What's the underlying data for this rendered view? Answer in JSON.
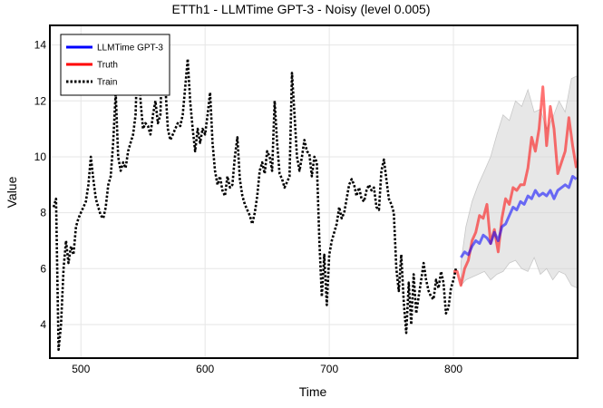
{
  "chart_data": {
    "type": "line",
    "title": "ETTh1 - LLMTime GPT-3 - Noisy (level 0.005)",
    "xlabel": "Time",
    "ylabel": "Value",
    "xlim": [
      475,
      900
    ],
    "ylim": [
      2.8,
      14.7
    ],
    "xticks": [
      500,
      600,
      700,
      800
    ],
    "yticks": [
      4,
      6,
      8,
      10,
      12,
      14
    ],
    "grid": true,
    "legend_position": "top-left",
    "colors": {
      "forecast": "#0000ff",
      "truth": "#ff0000",
      "train": "#000000",
      "band": "#d3d3d3"
    },
    "legend": [
      {
        "label": "LLMTime GPT-3",
        "color": "#0000ff",
        "style": "solid"
      },
      {
        "label": "Truth",
        "color": "#ff0000",
        "style": "solid"
      },
      {
        "label": "Train",
        "color": "#000000",
        "style": "dotted"
      }
    ],
    "series": [
      {
        "name": "Train",
        "style": "dotted",
        "x": [
          478,
          480,
          482,
          484,
          486,
          488,
          490,
          492,
          494,
          496,
          498,
          500,
          502,
          504,
          506,
          508,
          510,
          512,
          514,
          516,
          518,
          520,
          522,
          524,
          526,
          528,
          530,
          532,
          534,
          536,
          538,
          540,
          542,
          544,
          546,
          548,
          550,
          552,
          554,
          556,
          558,
          560,
          562,
          564,
          566,
          568,
          570,
          572,
          574,
          576,
          578,
          580,
          582,
          584,
          586,
          588,
          590,
          592,
          594,
          596,
          598,
          600,
          602,
          604,
          606,
          608,
          610,
          612,
          614,
          616,
          618,
          620,
          622,
          624,
          626,
          628,
          630,
          632,
          634,
          636,
          638,
          640,
          642,
          644,
          646,
          648,
          650,
          652,
          654,
          656,
          658,
          660,
          662,
          664,
          666,
          668,
          670,
          672,
          674,
          676,
          678,
          680,
          682,
          684,
          686,
          688,
          690,
          692,
          694,
          696,
          698,
          700,
          702,
          704,
          706,
          708,
          710,
          712,
          714,
          716,
          718,
          720,
          722,
          724,
          726,
          728,
          730,
          732,
          734,
          736,
          738,
          740,
          742,
          744,
          746,
          748,
          750,
          752,
          754,
          756,
          758,
          760,
          762,
          764,
          766,
          768,
          770,
          772,
          774,
          776,
          778,
          780,
          782,
          784,
          786,
          788,
          790,
          792,
          794,
          796,
          798,
          800,
          802
        ],
        "values": [
          8.2,
          8.5,
          3.1,
          4.0,
          6.0,
          7.0,
          6.2,
          6.8,
          6.5,
          7.5,
          7.8,
          8.0,
          8.2,
          8.4,
          9.0,
          10.0,
          9.2,
          8.5,
          8.2,
          7.9,
          7.8,
          8.2,
          9.0,
          9.3,
          10.5,
          12.3,
          10.0,
          9.5,
          9.8,
          9.6,
          10.2,
          10.5,
          10.8,
          11.5,
          14.2,
          12.0,
          11.0,
          11.2,
          11.1,
          10.8,
          11.5,
          12.0,
          11.2,
          11.5,
          14.3,
          12.5,
          11.0,
          10.6,
          10.8,
          11.0,
          11.2,
          11.1,
          11.5,
          12.5,
          13.5,
          12.0,
          11.0,
          10.2,
          11.0,
          10.5,
          11.0,
          10.8,
          11.5,
          12.3,
          10.5,
          9.5,
          9.0,
          9.3,
          8.8,
          8.6,
          9.3,
          8.9,
          9.0,
          10.0,
          10.7,
          9.2,
          8.6,
          8.3,
          8.1,
          7.9,
          7.6,
          8.0,
          8.6,
          9.5,
          9.8,
          9.4,
          10.2,
          10.0,
          9.5,
          12.0,
          10.5,
          9.4,
          9.2,
          8.9,
          9.1,
          9.3,
          13.0,
          11.5,
          10.0,
          9.5,
          10.0,
          10.6,
          10.2,
          10.1,
          9.3,
          10.0,
          9.8,
          7.0,
          5.0,
          6.5,
          4.7,
          6.5,
          7.0,
          7.3,
          7.6,
          8.2,
          7.8,
          8.0,
          8.5,
          9.0,
          9.2,
          9.0,
          8.6,
          8.9,
          8.5,
          8.4,
          8.8,
          9.0,
          8.8,
          8.9,
          8.2,
          8.1,
          9.5,
          9.9,
          9.2,
          8.5,
          8.3,
          8.0,
          6.0,
          5.2,
          6.5,
          4.8,
          3.7,
          5.5,
          4.0,
          5.8,
          4.4,
          5.0,
          5.6,
          6.2,
          5.6,
          5.2,
          5.0,
          4.9,
          5.6,
          5.3,
          5.9,
          5.5,
          4.4,
          4.6,
          5.3,
          5.6,
          6.0
        ]
      },
      {
        "name": "Truth",
        "style": "solid",
        "x": [
          800,
          803,
          806,
          809,
          812,
          815,
          818,
          821,
          824,
          827,
          830,
          833,
          836,
          839,
          842,
          845,
          848,
          851,
          854,
          857,
          860,
          863,
          866,
          869,
          872,
          875,
          878,
          881,
          884,
          887,
          890,
          893,
          896,
          899
        ],
        "values": [
          5.9,
          5.9,
          5.4,
          6.0,
          6.3,
          7.0,
          7.3,
          7.9,
          7.8,
          8.3,
          6.9,
          7.4,
          6.6,
          7.8,
          8.5,
          8.3,
          8.9,
          8.8,
          9.0,
          9.0,
          9.6,
          10.7,
          10.2,
          11.0,
          12.5,
          10.4,
          11.8,
          11.0,
          9.4,
          9.8,
          10.2,
          11.4,
          10.4,
          9.6
        ]
      },
      {
        "name": "LLMTime GPT-3",
        "style": "solid",
        "x": [
          806,
          809,
          812,
          815,
          818,
          821,
          824,
          827,
          830,
          833,
          836,
          839,
          842,
          845,
          848,
          851,
          854,
          857,
          860,
          863,
          866,
          869,
          872,
          875,
          878,
          881,
          884,
          887,
          890,
          893,
          896,
          899
        ],
        "values": [
          6.4,
          6.6,
          6.5,
          6.8,
          7.0,
          6.9,
          7.2,
          7.1,
          6.9,
          7.3,
          7.0,
          7.5,
          7.6,
          7.9,
          8.2,
          8.1,
          8.4,
          8.3,
          8.6,
          8.5,
          8.8,
          8.6,
          8.7,
          8.6,
          8.8,
          8.5,
          8.8,
          8.9,
          9.0,
          8.9,
          9.3,
          9.2
        ]
      }
    ],
    "band": {
      "x": [
        806,
        810,
        815,
        820,
        825,
        830,
        835,
        840,
        845,
        850,
        855,
        860,
        865,
        870,
        875,
        880,
        885,
        890,
        895,
        900
      ],
      "upper": [
        6.2,
        7.5,
        8.4,
        9.0,
        9.5,
        10.0,
        10.8,
        11.5,
        11.3,
        12.0,
        11.8,
        12.4,
        11.6,
        11.7,
        11.0,
        11.4,
        12.0,
        11.6,
        12.8,
        12.9
      ],
      "lower": [
        5.4,
        5.6,
        5.7,
        5.8,
        5.9,
        5.6,
        5.8,
        5.9,
        6.2,
        6.3,
        6.0,
        5.9,
        6.4,
        5.8,
        6.0,
        5.6,
        5.9,
        5.8,
        5.4,
        5.3
      ]
    }
  }
}
